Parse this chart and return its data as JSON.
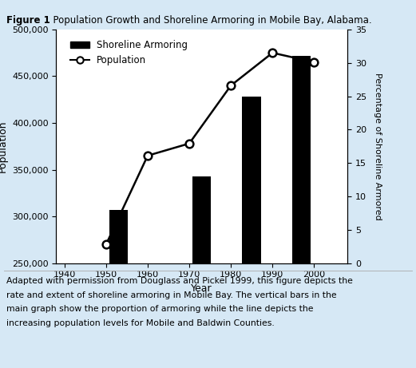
{
  "title_bold": "Figure 1",
  "title_rest": ". Population Growth and Shoreline Armoring in Mobile Bay, Alabama.",
  "bar_years": [
    1953,
    1973,
    1985,
    1997
  ],
  "bar_values": [
    8.0,
    13.0,
    25.0,
    31.0
  ],
  "pop_years": [
    1950,
    1960,
    1970,
    1980,
    1990,
    2000
  ],
  "pop_values": [
    270000,
    365000,
    378000,
    440000,
    475000,
    465000
  ],
  "xlabel": "Year",
  "ylabel_left": "Population",
  "ylabel_right": "Percentage of Shoreline Armored",
  "xlim": [
    1938,
    2008
  ],
  "ylim_left": [
    250000,
    500000
  ],
  "ylim_right": [
    0,
    35
  ],
  "yticks_left": [
    250000,
    300000,
    350000,
    400000,
    450000,
    500000
  ],
  "yticks_right": [
    0,
    5,
    10,
    15,
    20,
    25,
    30,
    35
  ],
  "xticks": [
    1940,
    1950,
    1960,
    1970,
    1980,
    1990,
    2000
  ],
  "bar_color": "#000000",
  "line_color": "#000000",
  "bg_color": "#d6e8f5",
  "plot_bg": "#ffffff",
  "bar_width": 4.5,
  "legend_bar_label": "Shoreline Armoring",
  "legend_line_label": "Population",
  "caption_lines": [
    "Adapted with permission from Douglass and Pickel 1999, this figure depicts the",
    "rate and extent of shoreline armoring in Mobile Bay. The vertical bars in the",
    "main graph show the proportion of armoring while the line depicts the",
    "increasing population levels for Mobile and Baldwin Counties."
  ]
}
